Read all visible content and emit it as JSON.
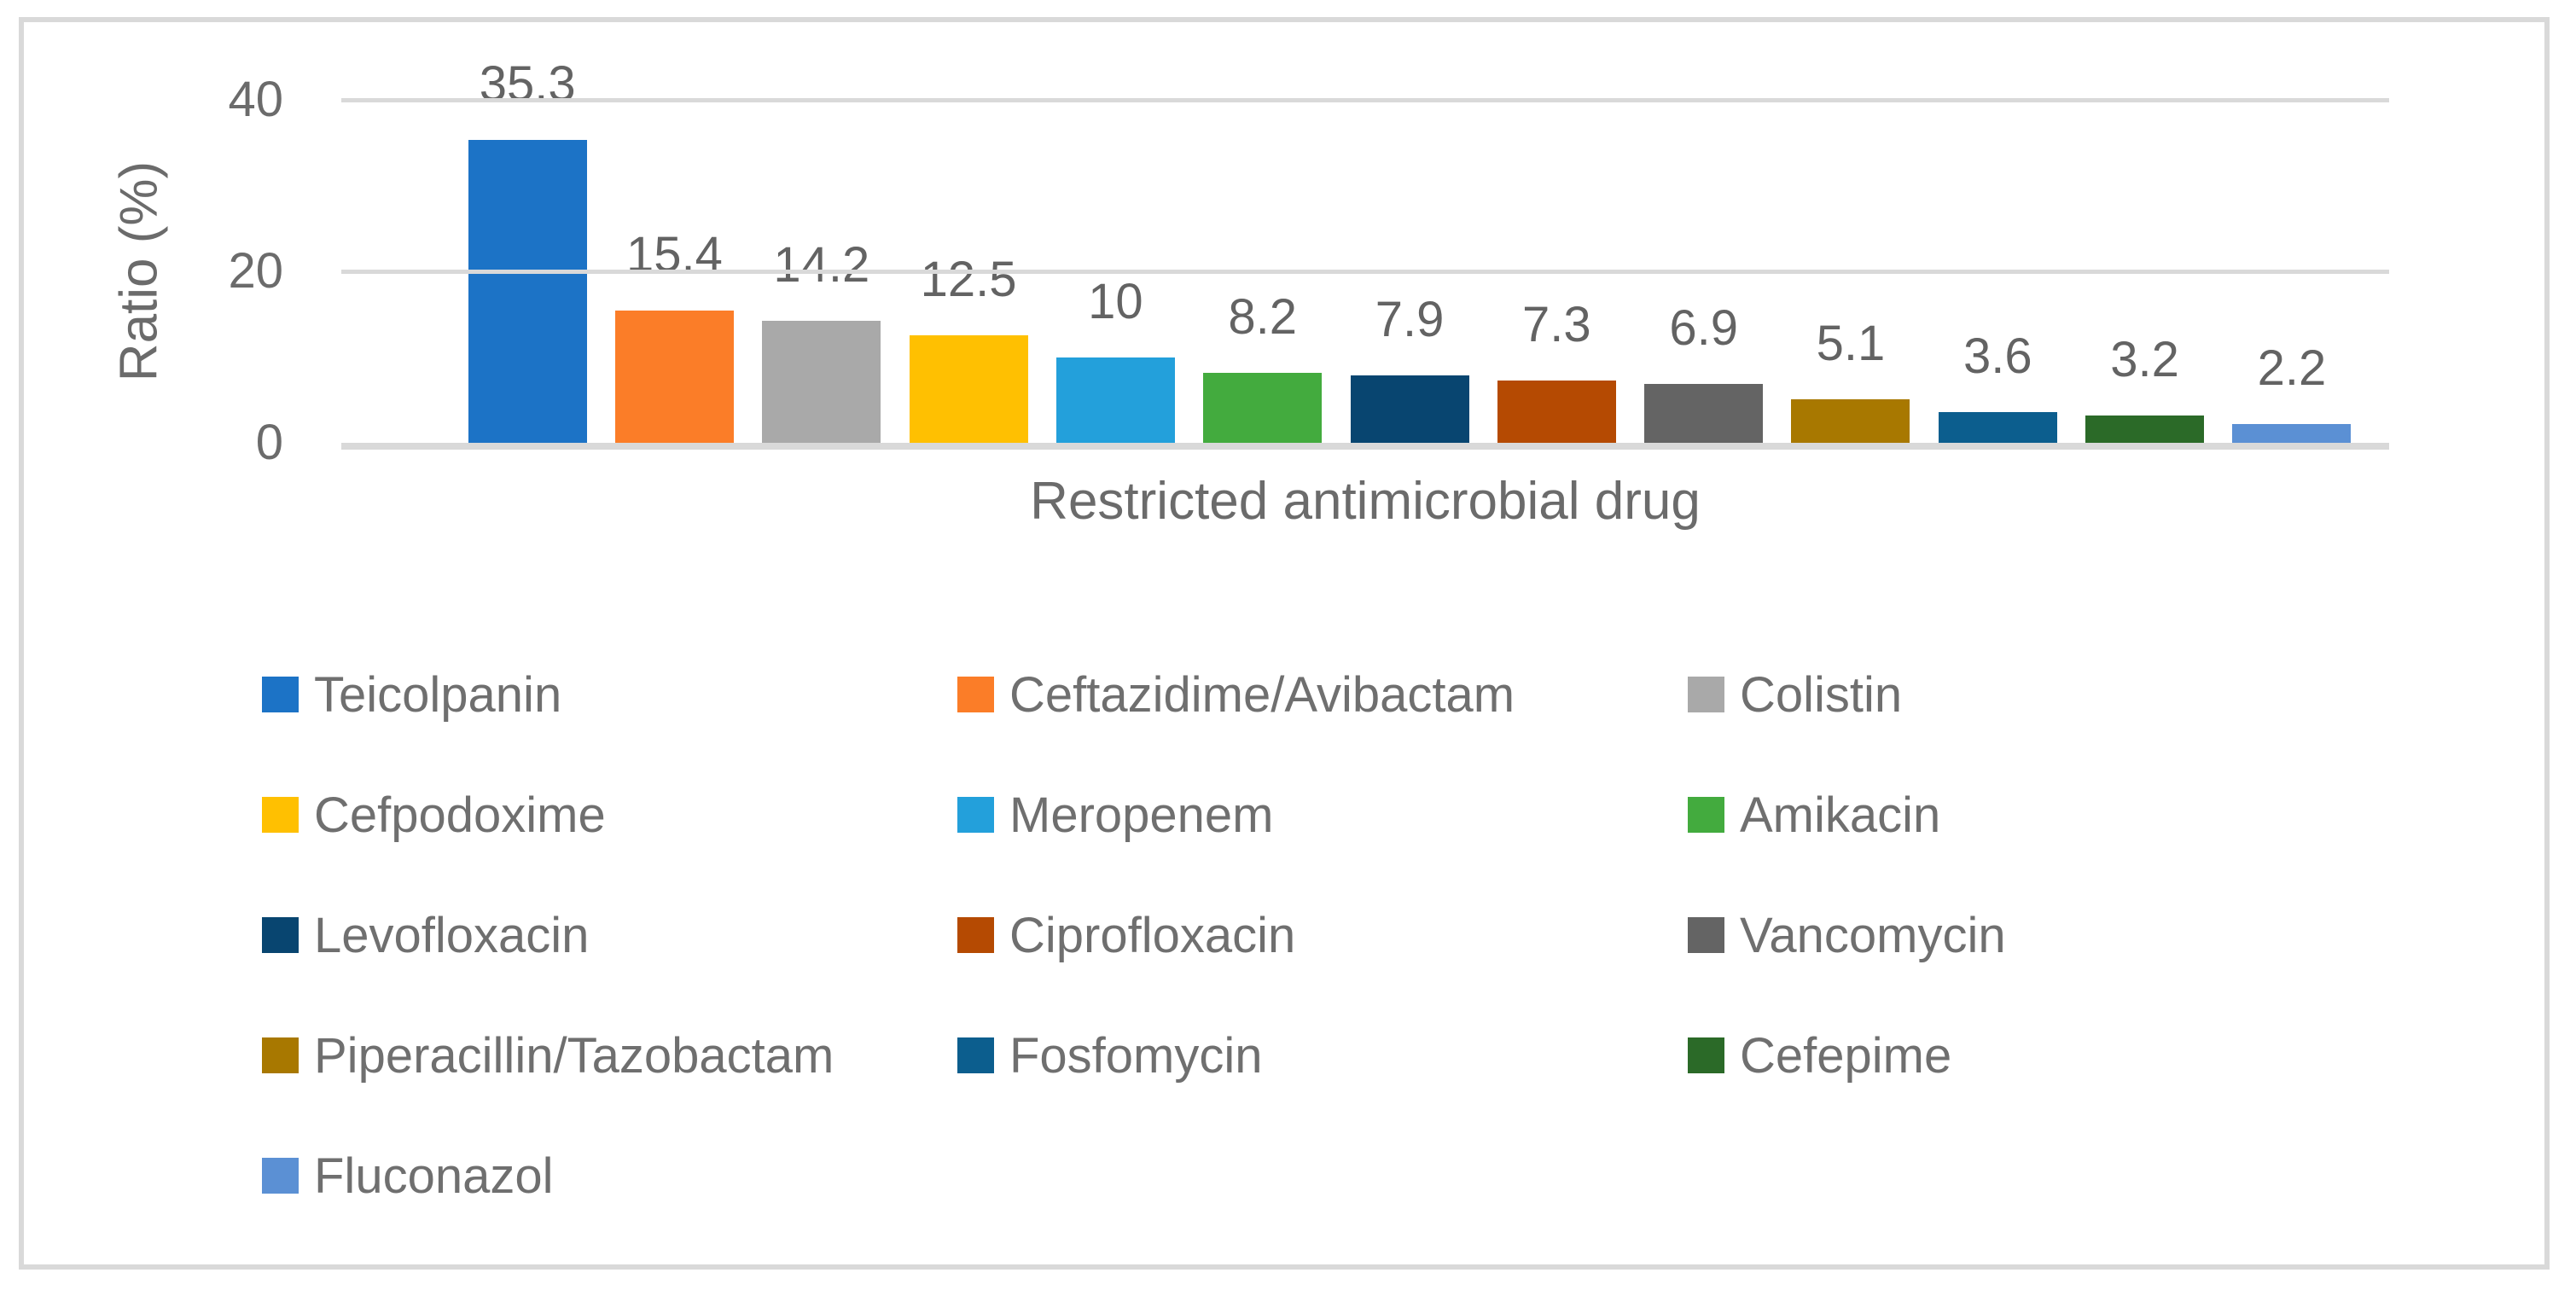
{
  "chart_data": {
    "type": "bar",
    "title": "",
    "xlabel": "Restricted antimicrobial drug",
    "ylabel": "Ratio (%)",
    "ylim": [
      0,
      40
    ],
    "yticks": [
      0,
      20,
      40
    ],
    "ytick_labels": [
      "0",
      "20",
      "40"
    ],
    "grid": "horizontal",
    "legend_position": "bottom",
    "categories": [
      "Teicolpanin",
      "Ceftazidime/Avibactam",
      "Colistin",
      "Cefpodoxime",
      "Meropenem",
      "Amikacin",
      "Levofloxacin",
      "Ciprofloxacin",
      "Vancomycin",
      "Piperacillin/Tazobactam",
      "Fosfomycin",
      "Cefepime",
      "Fluconazol"
    ],
    "values": [
      35.3,
      15.4,
      14.2,
      12.5,
      10,
      8.2,
      7.9,
      7.3,
      6.9,
      5.1,
      3.6,
      3.2,
      2.2
    ],
    "labels": [
      "35.3",
      "15.4",
      "14.2",
      "12.5",
      "10",
      "8.2",
      "7.9",
      "7.3",
      "6.9",
      "5.1",
      "3.6",
      "3.2",
      "2.2"
    ],
    "colors": [
      "#1c73c6",
      "#fb7d28",
      "#a9a9a9",
      "#ffc001",
      "#23a0db",
      "#43ab3e",
      "#084570",
      "#b54a02",
      "#646464",
      "#a87800",
      "#0c5e8e",
      "#2b6a28",
      "#5b90d4"
    ],
    "grid_color": "#d9d9d9",
    "text_color": "#6b6b6b"
  }
}
